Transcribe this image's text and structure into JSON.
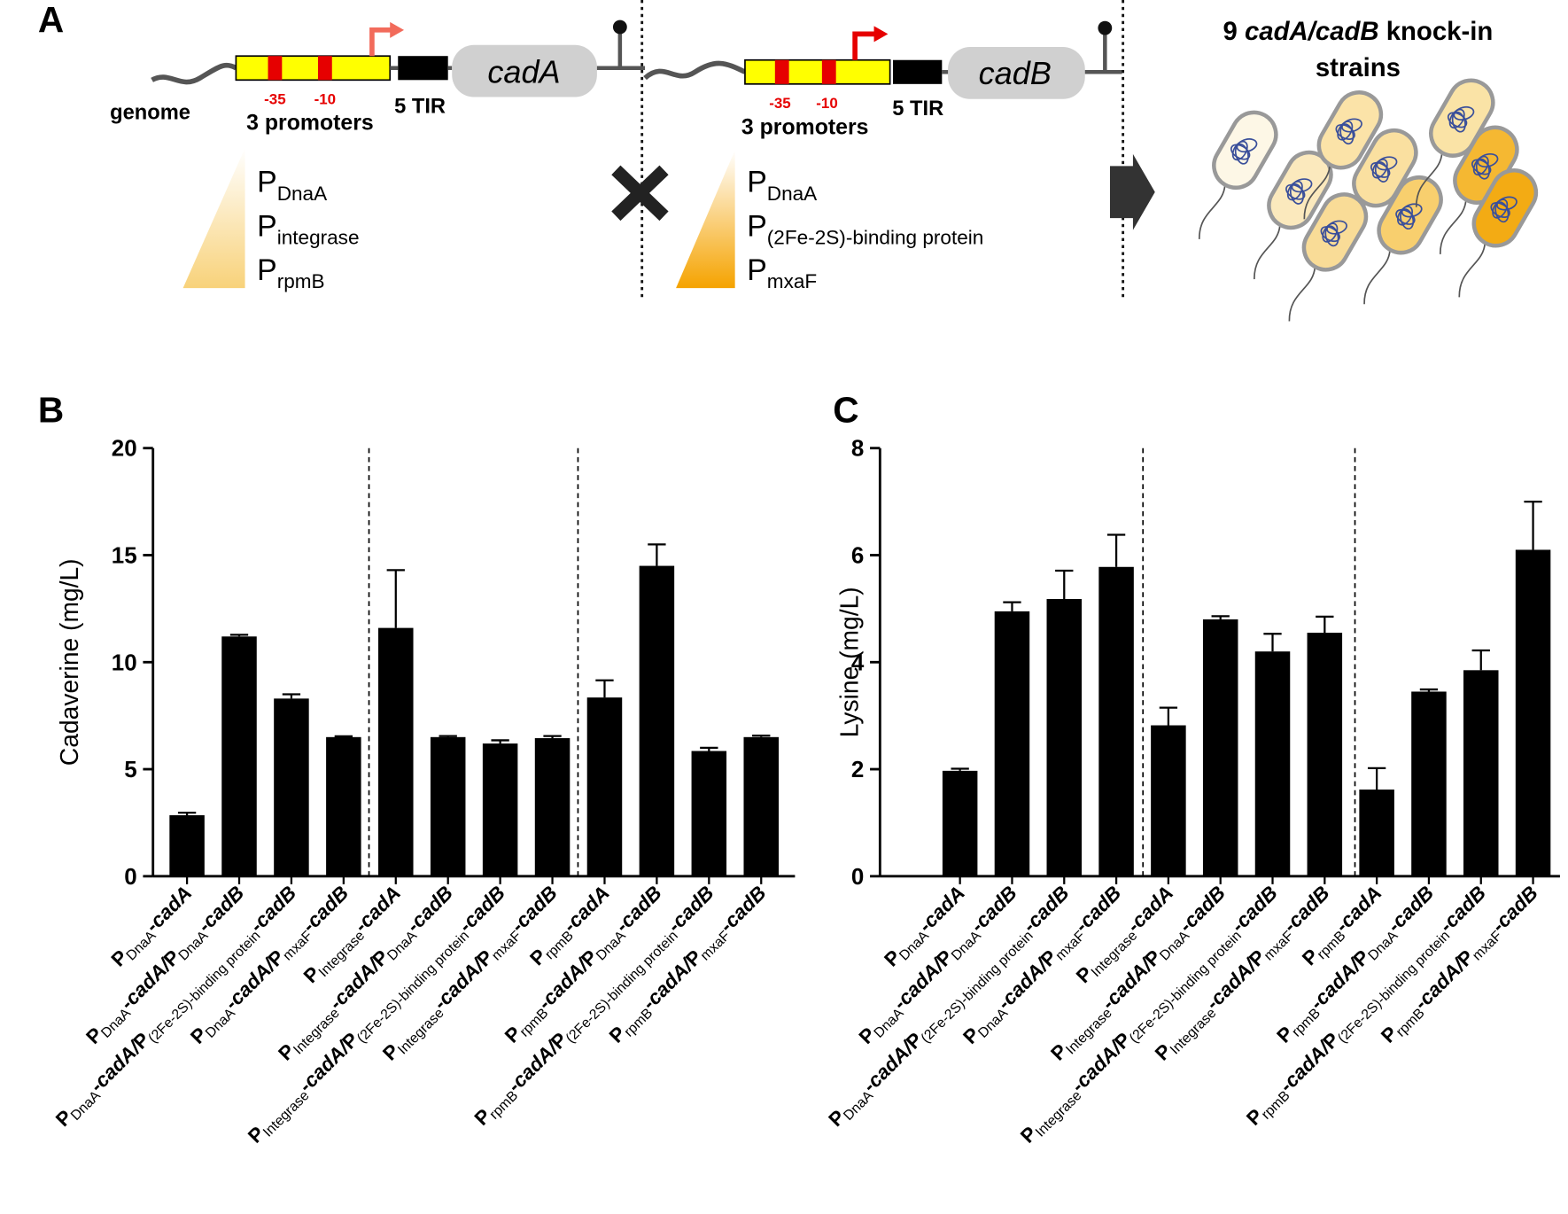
{
  "panel_labels": [
    "A",
    "B",
    "C"
  ],
  "diagram": {
    "genome": "genome",
    "construct_a": {
      "gene": "cadA",
      "tir": "5 TIR",
      "promoters": "3 promoters",
      "boxes": [
        "-35",
        "-10"
      ],
      "promoter_list": [
        [
          "P",
          "DnaA"
        ],
        [
          "P",
          "integrase"
        ],
        [
          "P",
          "rpmB"
        ]
      ]
    },
    "construct_b": {
      "gene": "cadB",
      "tir": "5 TIR",
      "promoters": "3 promoters",
      "boxes": [
        "-35",
        "-10"
      ],
      "promoter_list": [
        [
          "P",
          "DnaA"
        ],
        [
          "P",
          "(2Fe-2S)-binding protein"
        ],
        [
          "P",
          "mxaF"
        ]
      ]
    },
    "result": [
      "9 ",
      "cadA/cadB",
      " knock-in",
      "strains"
    ]
  },
  "chart_data": [
    {
      "type": "bar",
      "y_label": "Cadaverine (mg/L)",
      "categories": [
        "PDnaA-cadA",
        "PDnaA-cadA/PDnaA-cadB",
        "PDnaA-cadA/P(2Fe-2S)-binding protein-cadB",
        "PDnaA-cadA/PmxaF-cadB",
        "PIntegrase-cadA",
        "PIntegrase-cadA/PDnaA-cadB",
        "PIntegrase-cadA/P(2Fe-2S)-binding protein-cadB",
        "PIntegrase-cadA/PmxaF-cadB",
        "PrpmB-cadA",
        "PrpmB-cadA/PDnaA-cadB",
        "PrpmB-cadA/P(2Fe-2S)-binding protein-cadB",
        "PrpmB-cadA/PmxaF-cadB"
      ],
      "values": [
        2.85,
        11.2,
        8.3,
        6.5,
        11.6,
        6.5,
        6.2,
        6.45,
        8.35,
        14.5,
        5.85,
        6.5
      ],
      "errors": [
        0.12,
        0.08,
        0.2,
        0.04,
        2.7,
        0.05,
        0.15,
        0.1,
        0.8,
        1.0,
        0.15,
        0.07
      ],
      "color": "#000000",
      "ylim": [
        0,
        20
      ],
      "yticks": [
        0,
        5,
        10,
        15,
        20
      ]
    },
    {
      "type": "bar",
      "y_label": "Lysine (mg/L)",
      "categories": [
        "PDnaA-cadA",
        "PDnaA-cadA/PDnaA-cadB",
        "PDnaA-cadA/P(2Fe-2S)-binding protein-cadB",
        "PDnaA-cadA/PmxaF-cadB",
        "PIntegrase-cadA",
        "PIntegrase-cadA/PDnaA-cadB",
        "PIntegrase-cadA/P(2Fe-2S)-binding protein-cadB",
        "PIntegrase-cadA/PmxaF-cadB",
        "PrpmB-cadA",
        "PrpmB-cadA/PDnaA-cadB",
        "PrpmB-cadA/P(2Fe-2S)-binding protein-cadB",
        "PrpmB-cadA/PmxaF-cadB"
      ],
      "values": [
        1.97,
        4.95,
        5.18,
        5.78,
        2.82,
        4.8,
        4.2,
        4.55,
        1.62,
        3.45,
        3.85,
        6.1
      ],
      "errors": [
        0.04,
        0.17,
        0.53,
        0.6,
        0.33,
        0.06,
        0.33,
        0.3,
        0.4,
        0.04,
        0.37,
        0.9
      ],
      "color": "#000000",
      "ylim": [
        0,
        8
      ],
      "yticks": [
        0,
        2,
        4,
        6,
        8
      ]
    }
  ]
}
